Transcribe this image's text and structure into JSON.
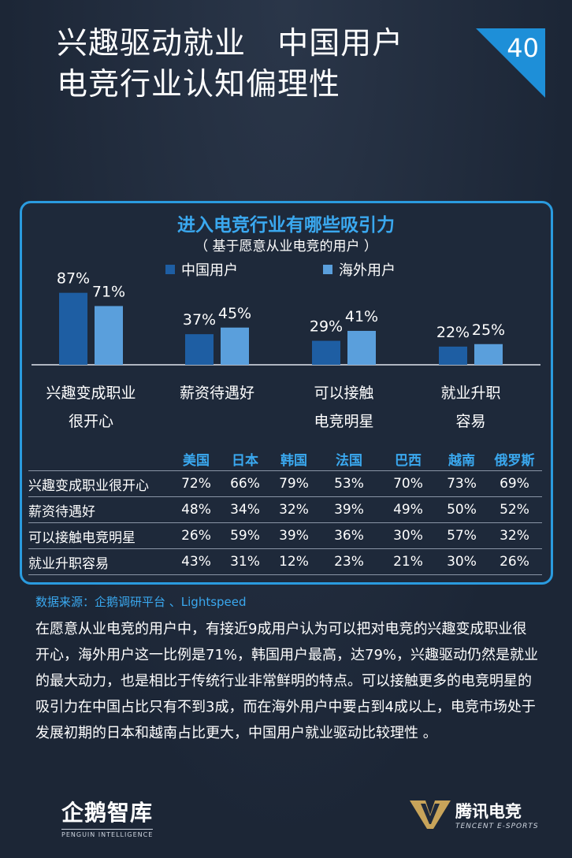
{
  "header": {
    "title_line1": "兴趣驱动就业   中国用户",
    "title_line2": "电竞行业认知偏理性",
    "page_number": "40"
  },
  "chart_data": {
    "type": "bar",
    "title": "进入电竞行业有哪些吸引力",
    "subtitle": "（ 基于愿意从业电竞的用户 ）",
    "categories": [
      [
        "兴趣变成职业",
        "很开心"
      ],
      [
        "薪资待遇好"
      ],
      [
        "可以接触",
        "电竞明星"
      ],
      [
        "就业升职",
        "容易"
      ]
    ],
    "series": [
      {
        "name": "中国用户",
        "values": [
          87,
          37,
          29,
          22
        ],
        "labels": [
          "87%",
          "37%",
          "29%",
          "22%"
        ],
        "color": "#1e5ea3"
      },
      {
        "name": "海外用户",
        "values": [
          71,
          45,
          41,
          25
        ],
        "labels": [
          "71%",
          "45%",
          "41%",
          "25%"
        ],
        "color": "#5a9fdc"
      }
    ],
    "ylim": [
      0,
      100
    ],
    "legend": "top",
    "grid": false
  },
  "table": {
    "columns": [
      "美国",
      "日本",
      "韩国",
      "法国",
      "巴西",
      "越南",
      "俄罗斯"
    ],
    "rows": [
      {
        "label": "兴趣变成职业很开心",
        "values": [
          "72%",
          "66%",
          "79%",
          "53%",
          "70%",
          "73%",
          "69%"
        ]
      },
      {
        "label": "薪资待遇好",
        "values": [
          "48%",
          "34%",
          "32%",
          "39%",
          "49%",
          "50%",
          "52%"
        ]
      },
      {
        "label": "可以接触电竞明星",
        "values": [
          "26%",
          "59%",
          "39%",
          "36%",
          "30%",
          "57%",
          "32%"
        ]
      },
      {
        "label": "就业升职容易",
        "values": [
          "43%",
          "31%",
          "12%",
          "23%",
          "21%",
          "30%",
          "26%"
        ]
      }
    ]
  },
  "source": "数据来源：企鹅调研平台 、Lightspeed",
  "body_text": "在愿意从业电竞的用户中，有接近9成用户认为可以把对电竞的兴趣变成职业很开心，海外用户这一比例是71%，韩国用户最高，达79%，兴趣驱动仍然是就业的最大动力，也是相比于传统行业非常鲜明的特点。可以接触更多的电竞明星的吸引力在中国占比只有不到3成，而在海外用户中要占到4成以上，电竞市场处于发展初期的日本和越南占比更大，中国用户就业驱动比较理性 。",
  "footer": {
    "left_logo_text": "企鹅智库",
    "left_logo_sub": "PENGUIN INTELLIGENCE",
    "right_logo_text": "腾讯电竞",
    "right_logo_sub": "TENCENT E-SPORTS",
    "right_logo_color": "#c8a45a"
  }
}
